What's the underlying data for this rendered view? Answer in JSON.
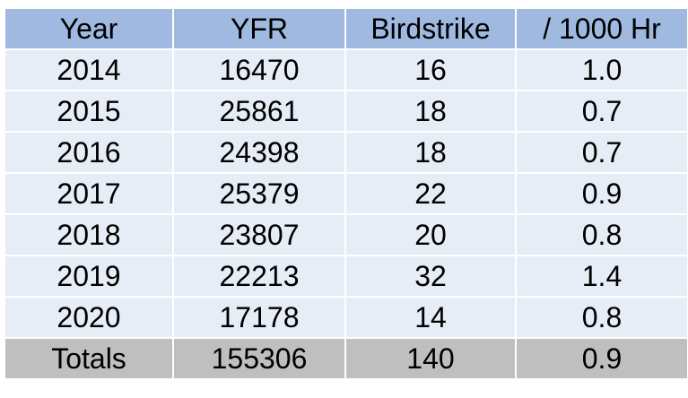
{
  "chart_data": {
    "type": "table",
    "columns": [
      "Year",
      "YFR",
      "Birdstrike",
      "/ 1000 Hr"
    ],
    "rows": [
      [
        "2014",
        "16470",
        "16",
        "1.0"
      ],
      [
        "2015",
        "25861",
        "18",
        "0.7"
      ],
      [
        "2016",
        "24398",
        "18",
        "0.7"
      ],
      [
        "2017",
        "25379",
        "22",
        "0.9"
      ],
      [
        "2018",
        "23807",
        "20",
        "0.8"
      ],
      [
        "2019",
        "22213",
        "32",
        "1.4"
      ],
      [
        "2020",
        "17178",
        "14",
        "0.8"
      ]
    ],
    "totals": [
      "Totals",
      "155306",
      "140",
      "0.9"
    ]
  },
  "colors": {
    "header_background": "#9fb9e0",
    "row_background": "#e7edf6",
    "totals_background": "#bfbfbf"
  }
}
